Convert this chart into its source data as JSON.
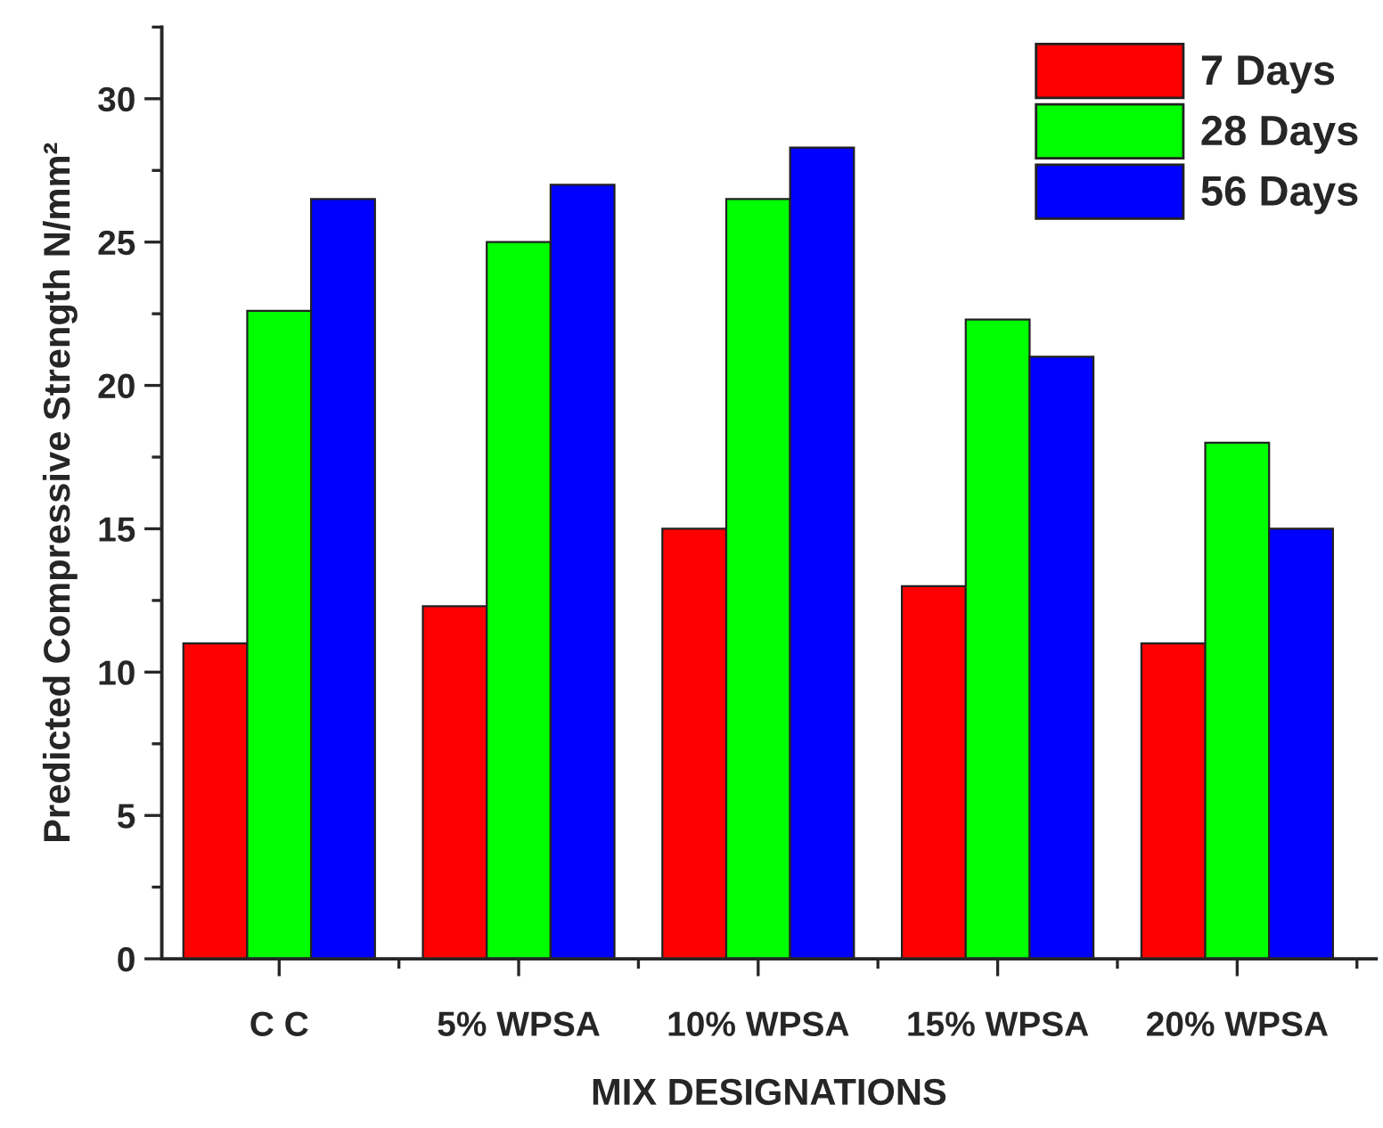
{
  "chart_data": {
    "type": "bar",
    "xlabel": "MIX DESIGNATIONS",
    "ylabel": "Predicted Compressive Strength N/mm²",
    "categories": [
      "C C",
      "5% WPSA",
      "10% WPSA",
      "15% WPSA",
      "20% WPSA"
    ],
    "series": [
      {
        "name": "7 Days",
        "color": "#ff0000",
        "values": [
          11.0,
          12.3,
          15.0,
          13.0,
          11.0
        ]
      },
      {
        "name": "28 Days",
        "color": "#00ff00",
        "values": [
          22.6,
          25.0,
          26.5,
          22.3,
          18.0
        ]
      },
      {
        "name": "56 Days",
        "color": "#0000ff",
        "values": [
          26.5,
          27.0,
          28.3,
          21.0,
          15.0
        ]
      }
    ],
    "ylim": [
      0,
      32.5
    ],
    "yticks": [
      0,
      5,
      10,
      15,
      20,
      25,
      30
    ],
    "grid": false,
    "legend": "top right"
  }
}
